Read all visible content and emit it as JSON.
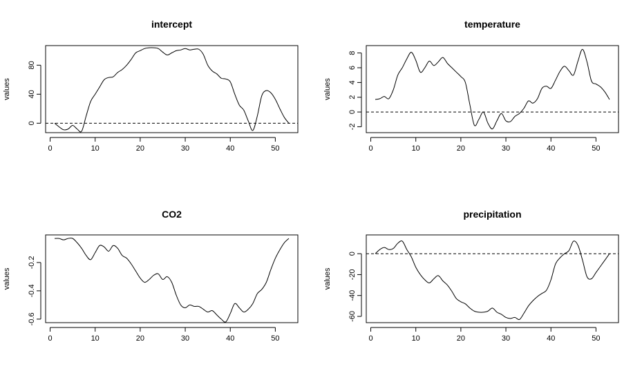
{
  "chart_data": [
    {
      "type": "line",
      "title": "intercept",
      "xlabel": "",
      "ylabel": "values",
      "xlim": [
        -1,
        55
      ],
      "ylim": [
        -13,
        107
      ],
      "xticks": [
        0,
        10,
        20,
        30,
        40,
        50
      ],
      "yticks": [
        0,
        40,
        80
      ],
      "reference_line": 0,
      "x": [
        1,
        2,
        3,
        4,
        5,
        6,
        7,
        8,
        9,
        10,
        11,
        12,
        13,
        14,
        15,
        16,
        17,
        18,
        19,
        20,
        21,
        22,
        23,
        24,
        25,
        26,
        27,
        28,
        29,
        30,
        31,
        32,
        33,
        34,
        35,
        36,
        37,
        38,
        39,
        40,
        41,
        42,
        43,
        44,
        45,
        46,
        47,
        48,
        49,
        50,
        51,
        52,
        53
      ],
      "y": [
        0,
        -5,
        -9,
        -8,
        -3,
        -8,
        -11,
        10,
        30,
        40,
        50,
        60,
        63,
        64,
        70,
        74,
        80,
        88,
        97,
        100,
        103,
        104,
        104,
        103,
        98,
        94,
        97,
        100,
        101,
        103,
        101,
        102,
        102,
        95,
        80,
        72,
        68,
        62,
        61,
        57,
        40,
        25,
        18,
        3,
        -10,
        10,
        38,
        45,
        42,
        33,
        20,
        8,
        0
      ]
    },
    {
      "type": "line",
      "title": "temperature",
      "xlabel": "",
      "ylabel": "values",
      "xlim": [
        -1,
        55
      ],
      "ylim": [
        -2.8,
        9.0
      ],
      "xticks": [
        0,
        10,
        20,
        30,
        40,
        50
      ],
      "yticks": [
        -2,
        0,
        2,
        4,
        6,
        8
      ],
      "reference_line": 0,
      "x": [
        1,
        2,
        3,
        4,
        5,
        6,
        7,
        8,
        9,
        10,
        11,
        12,
        13,
        14,
        15,
        16,
        17,
        18,
        19,
        20,
        21,
        22,
        23,
        24,
        25,
        26,
        27,
        28,
        29,
        30,
        31,
        32,
        33,
        34,
        35,
        36,
        37,
        38,
        39,
        40,
        41,
        42,
        43,
        44,
        45,
        46,
        47,
        48,
        49,
        50,
        51,
        52,
        53
      ],
      "y": [
        1.7,
        1.8,
        2.1,
        1.8,
        3.0,
        5.0,
        6.0,
        7.2,
        8.1,
        7.0,
        5.4,
        6.0,
        6.9,
        6.3,
        6.8,
        7.4,
        6.6,
        6.0,
        5.4,
        4.8,
        4.0,
        1.0,
        -1.8,
        -1.0,
        0.0,
        -1.5,
        -2.3,
        -1.2,
        -0.2,
        -1.2,
        -1.3,
        -0.6,
        -0.2,
        0.5,
        1.5,
        1.2,
        1.8,
        3.2,
        3.5,
        3.2,
        4.3,
        5.5,
        6.2,
        5.6,
        5.0,
        6.9,
        8.5,
        6.8,
        4.2,
        3.8,
        3.4,
        2.7,
        1.7
      ]
    },
    {
      "type": "line",
      "title": "CO2",
      "xlabel": "",
      "ylabel": "values",
      "xlim": [
        -1,
        55
      ],
      "ylim": [
        -0.625,
        -0.005
      ],
      "xticks": [
        0,
        10,
        20,
        30,
        40,
        50
      ],
      "yticks": [
        -0.6,
        -0.4,
        -0.2
      ],
      "reference_line": null,
      "x": [
        1,
        2,
        3,
        4,
        5,
        6,
        7,
        8,
        9,
        10,
        11,
        12,
        13,
        14,
        15,
        16,
        17,
        18,
        19,
        20,
        21,
        22,
        23,
        24,
        25,
        26,
        27,
        28,
        29,
        30,
        31,
        32,
        33,
        34,
        35,
        36,
        37,
        38,
        39,
        40,
        41,
        42,
        43,
        44,
        45,
        46,
        47,
        48,
        49,
        50,
        51,
        52,
        53
      ],
      "y": [
        -0.03,
        -0.03,
        -0.04,
        -0.03,
        -0.03,
        -0.06,
        -0.1,
        -0.15,
        -0.18,
        -0.13,
        -0.08,
        -0.09,
        -0.12,
        -0.08,
        -0.1,
        -0.15,
        -0.17,
        -0.21,
        -0.26,
        -0.31,
        -0.34,
        -0.32,
        -0.29,
        -0.28,
        -0.32,
        -0.3,
        -0.34,
        -0.43,
        -0.5,
        -0.52,
        -0.5,
        -0.51,
        -0.51,
        -0.53,
        -0.55,
        -0.54,
        -0.57,
        -0.6,
        -0.62,
        -0.56,
        -0.49,
        -0.52,
        -0.55,
        -0.53,
        -0.49,
        -0.42,
        -0.39,
        -0.34,
        -0.25,
        -0.17,
        -0.11,
        -0.06,
        -0.03
      ]
    },
    {
      "type": "line",
      "title": "precipitation",
      "xlabel": "",
      "ylabel": "values",
      "xlim": [
        -1,
        55
      ],
      "ylim": [
        -66,
        18
      ],
      "xticks": [
        0,
        10,
        20,
        30,
        40,
        50
      ],
      "yticks": [
        -60,
        -40,
        -20,
        0
      ],
      "reference_line": 0,
      "x": [
        1,
        2,
        3,
        4,
        5,
        6,
        7,
        8,
        9,
        10,
        11,
        12,
        13,
        14,
        15,
        16,
        17,
        18,
        19,
        20,
        21,
        22,
        23,
        24,
        25,
        26,
        27,
        28,
        29,
        30,
        31,
        32,
        33,
        34,
        35,
        36,
        37,
        38,
        39,
        40,
        41,
        42,
        43,
        44,
        45,
        46,
        47,
        48,
        49,
        50,
        51,
        52,
        53
      ],
      "y": [
        0,
        4,
        6,
        4,
        5,
        10,
        12,
        4,
        -3,
        -13,
        -20,
        -25,
        -28,
        -24,
        -21,
        -26,
        -30,
        -36,
        -43,
        -46,
        -48,
        -52,
        -55,
        -56,
        -56,
        -55,
        -52,
        -56,
        -58,
        -61,
        -62,
        -61,
        -63,
        -57,
        -50,
        -45,
        -41,
        -38,
        -35,
        -25,
        -10,
        -4,
        0,
        3,
        12,
        8,
        -6,
        -22,
        -24,
        -18,
        -12,
        -6,
        0
      ]
    }
  ]
}
